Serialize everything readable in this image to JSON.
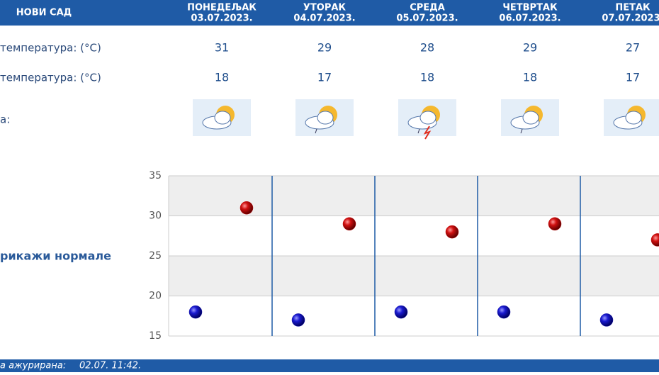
{
  "header": {
    "title": "НОВИ САД"
  },
  "days": [
    {
      "name": "ПОНЕДЕЉАК",
      "date": "03.07.2023."
    },
    {
      "name": "УТОРАК",
      "date": "04.07.2023."
    },
    {
      "name": "СРЕДА",
      "date": "05.07.2023."
    },
    {
      "name": "ЧЕТВРТАК",
      "date": "06.07.2023."
    },
    {
      "name": "ПЕТАК",
      "date": "07.07.2023."
    }
  ],
  "rows": {
    "max_label": "температура: (°C)",
    "min_label": "температура: (°C)",
    "icon_label": "а:"
  },
  "link": "рикажи нормале",
  "footer": {
    "label": "а ажурирана:",
    "value": "02.07. 11:42."
  },
  "chart_data": {
    "type": "scatter",
    "ylim": [
      15,
      35
    ],
    "yticks": [
      15,
      20,
      25,
      30,
      35
    ],
    "grid": true,
    "series": [
      {
        "color": "#c00000",
        "values": [
          31,
          29,
          28,
          29,
          27
        ]
      },
      {
        "color": "#1010b0",
        "values": [
          18,
          17,
          18,
          18,
          17
        ]
      }
    ]
  }
}
